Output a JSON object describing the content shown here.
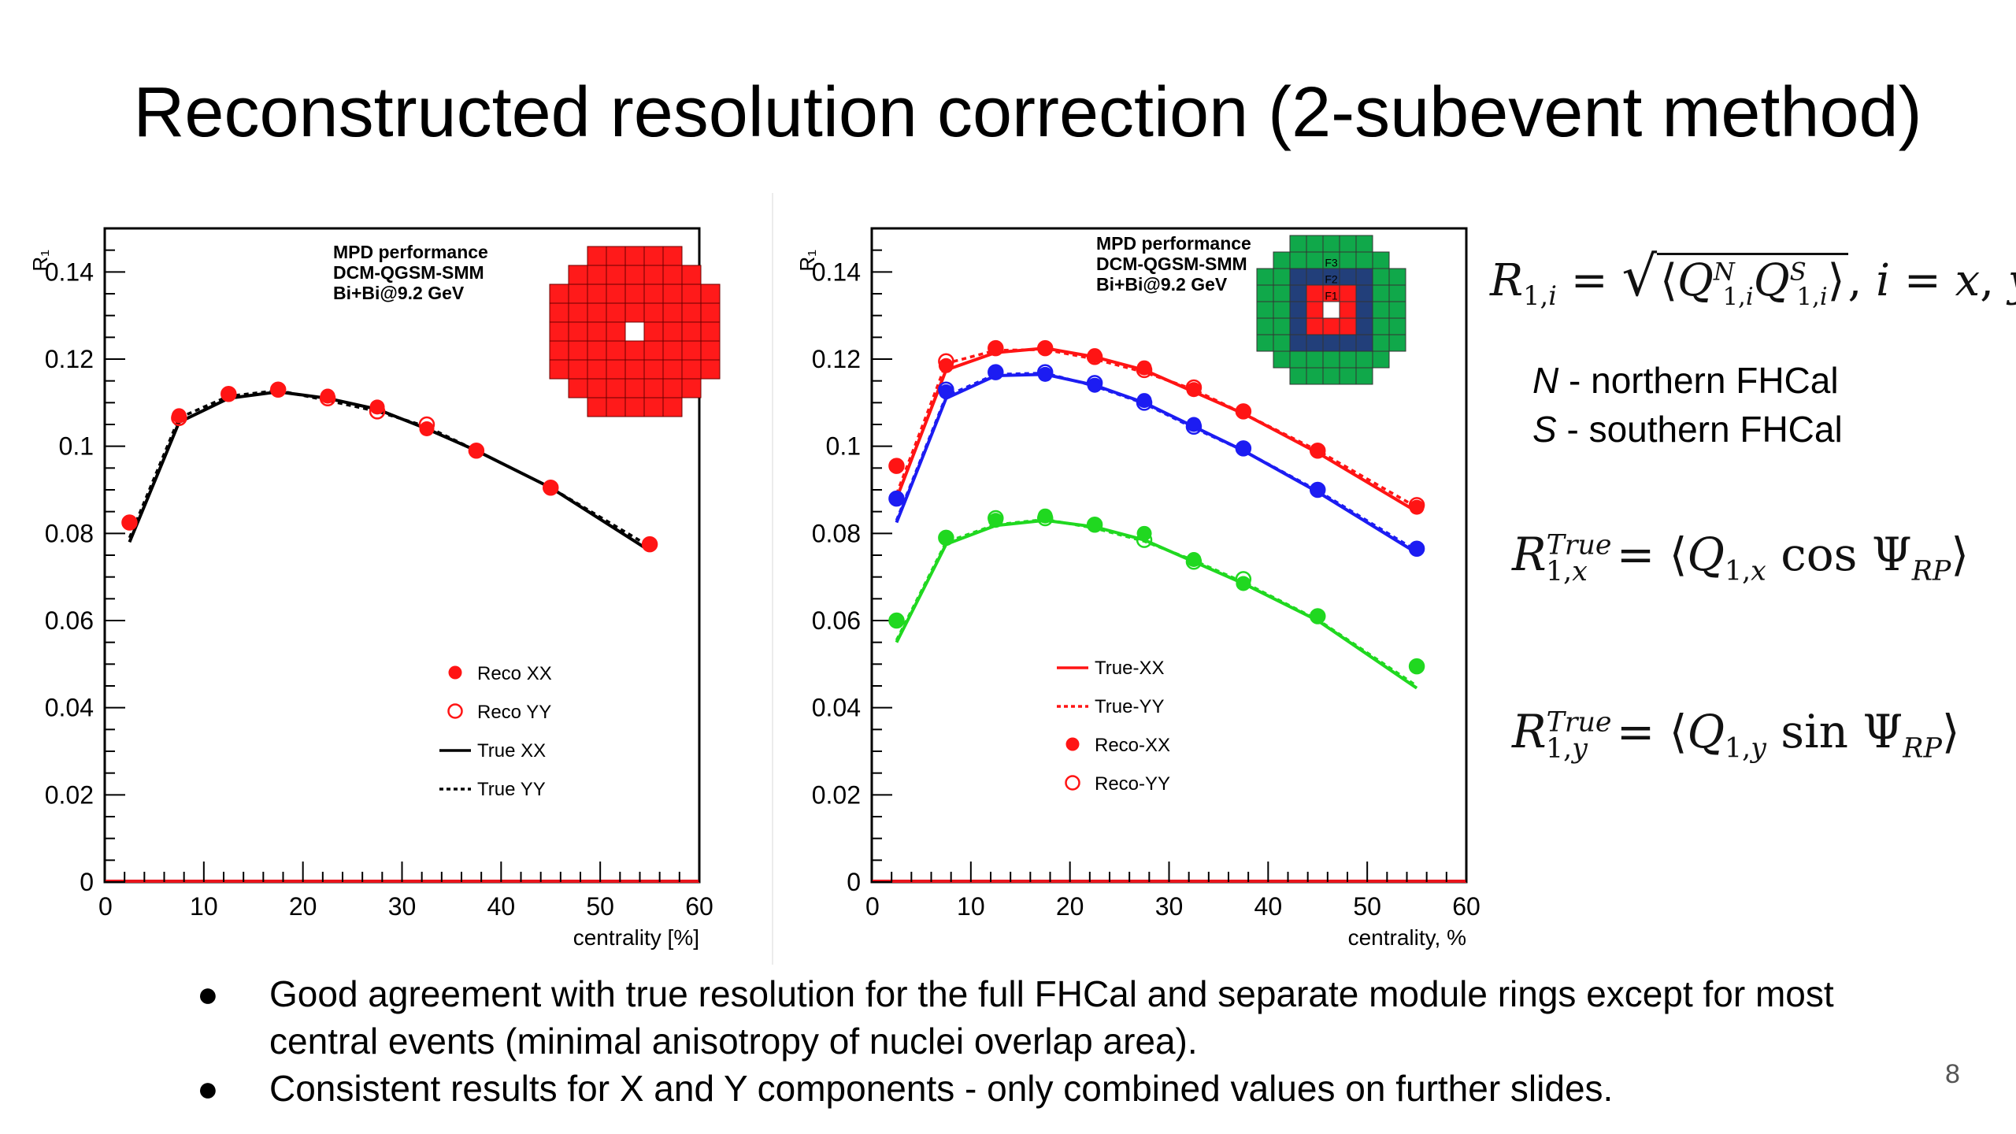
{
  "slide": {
    "title": "Reconstructed resolution correction (2-subevent method)",
    "page_number": "8",
    "bullets": [
      "Good agreement with true resolution for the full FHCal and separate module rings except for most central events (minimal anisotropy of nuclei overlap area).",
      "Consistent results for X and Y components - only combined values on further slides."
    ],
    "notes": [
      {
        "symbol": "N",
        "text": " - northern FHCal"
      },
      {
        "symbol": "S",
        "text": " - southern FHCal"
      }
    ],
    "colors": {
      "red": "#ff1414",
      "blue": "#1c1cf2",
      "green": "#20d820",
      "module_red": "#ff1a1a",
      "ring_blue": "#223f7a",
      "ring_green": "#10a84a"
    }
  },
  "chart_data": [
    {
      "type": "scatter",
      "title": "",
      "annotation": [
        "MPD performance",
        "DCM-QGSM-SMM",
        "Bi+Bi@9.2 GeV"
      ],
      "xlabel": "centrality [%]",
      "ylabel": "R₁",
      "xlim": [
        0,
        60
      ],
      "ylim": [
        0,
        0.15
      ],
      "xticks": [
        0,
        10,
        20,
        30,
        40,
        50,
        60
      ],
      "yticks": [
        0,
        0.02,
        0.04,
        0.06,
        0.08,
        0.1,
        0.12,
        0.14
      ],
      "ytick_labels": [
        "0",
        "0.02",
        "0.04",
        "0.06",
        "0.08",
        "0.1",
        "0.12",
        "0.14"
      ],
      "legend_position": "bottom-right",
      "x": [
        2.5,
        7.5,
        12.5,
        17.5,
        22.5,
        27.5,
        32.5,
        37.5,
        45,
        55
      ],
      "series": [
        {
          "name": "Reco XX",
          "style": "marker-filled",
          "color": "#ff1414",
          "values": [
            0.0825,
            0.107,
            0.112,
            0.113,
            0.1115,
            0.109,
            0.104,
            0.099,
            0.0905,
            0.0775
          ]
        },
        {
          "name": "Reco YY",
          "style": "marker-open",
          "color": "#ff1414",
          "values": [
            0.0825,
            0.1065,
            0.112,
            0.113,
            0.111,
            0.108,
            0.105,
            0.099,
            0.0905,
            0.0775
          ]
        },
        {
          "name": "True XX",
          "style": "line-solid",
          "color": "#000000",
          "values": [
            0.078,
            0.1055,
            0.111,
            0.1125,
            0.111,
            0.1085,
            0.104,
            0.099,
            0.0905,
            0.076
          ]
        },
        {
          "name": "True YY",
          "style": "line-dotted",
          "color": "#000000",
          "values": [
            0.079,
            0.1065,
            0.1115,
            0.1128,
            0.1105,
            0.108,
            0.1045,
            0.099,
            0.0905,
            0.077
          ]
        }
      ]
    },
    {
      "type": "scatter",
      "title": "",
      "annotation": [
        "MPD performance",
        "DCM-QGSM-SMM",
        "Bi+Bi@9.2 GeV"
      ],
      "xlabel": "centrality, %",
      "ylabel": "R₁",
      "xlim": [
        0,
        60
      ],
      "ylim": [
        0,
        0.15
      ],
      "xticks": [
        0,
        10,
        20,
        30,
        40,
        50,
        60
      ],
      "yticks": [
        0,
        0.02,
        0.04,
        0.06,
        0.08,
        0.1,
        0.12,
        0.14
      ],
      "ytick_labels": [
        "0",
        "0.02",
        "0.04",
        "0.06",
        "0.08",
        "0.1",
        "0.12",
        "0.14"
      ],
      "legend_position": "bottom-right",
      "module_labels": [
        "F3",
        "F2",
        "F1"
      ],
      "x": [
        2.5,
        7.5,
        12.5,
        17.5,
        22.5,
        27.5,
        32.5,
        37.5,
        45,
        55
      ],
      "groups": [
        {
          "color": "#ff1414",
          "reco_xx": [
            0.0955,
            0.1185,
            0.1225,
            0.1225,
            0.1208,
            0.118,
            0.113,
            0.108,
            0.099,
            0.086
          ],
          "reco_yy": [
            0.0955,
            0.1195,
            0.1225,
            0.1225,
            0.1205,
            0.1175,
            0.1135,
            0.108,
            0.099,
            0.0865
          ],
          "true_xx": [
            0.088,
            0.1175,
            0.1215,
            0.1225,
            0.1205,
            0.1175,
            0.1125,
            0.1075,
            0.0985,
            0.085
          ],
          "true_yy": [
            0.089,
            0.119,
            0.122,
            0.1222,
            0.12,
            0.117,
            0.113,
            0.1075,
            0.099,
            0.086
          ]
        },
        {
          "color": "#1c1cf2",
          "reco_xx": [
            0.088,
            0.1125,
            0.117,
            0.1165,
            0.114,
            0.1105,
            0.105,
            0.0995,
            0.09,
            0.0765
          ],
          "reco_yy": [
            0.088,
            0.113,
            0.117,
            0.117,
            0.1145,
            0.11,
            0.1045,
            0.0995,
            0.09,
            0.0765
          ],
          "true_xx": [
            0.0825,
            0.111,
            0.1162,
            0.1165,
            0.114,
            0.11,
            0.1045,
            0.099,
            0.0895,
            0.0755
          ],
          "true_yy": [
            0.083,
            0.1115,
            0.1165,
            0.1168,
            0.1138,
            0.1098,
            0.1042,
            0.099,
            0.0898,
            0.076
          ]
        },
        {
          "color": "#20d820",
          "reco_xx": [
            0.06,
            0.079,
            0.083,
            0.084,
            0.082,
            0.08,
            0.074,
            0.0685,
            0.061,
            0.0495
          ],
          "reco_yy": [
            0.06,
            0.079,
            0.0835,
            0.0835,
            0.082,
            0.0785,
            0.0735,
            0.0695,
            0.061,
            0.0495
          ],
          "true_xx": [
            0.055,
            0.0775,
            0.0818,
            0.083,
            0.0815,
            0.0785,
            0.0735,
            0.0685,
            0.06,
            0.0445
          ],
          "true_yy": [
            0.0555,
            0.078,
            0.082,
            0.0832,
            0.0812,
            0.0782,
            0.0738,
            0.0688,
            0.0602,
            0.045
          ]
        }
      ],
      "legend": [
        {
          "name": "True-XX",
          "style": "line-solid",
          "color": "#ff1414"
        },
        {
          "name": "True-YY",
          "style": "line-dotted",
          "color": "#ff1414"
        },
        {
          "name": "Reco-XX",
          "style": "marker-filled",
          "color": "#ff1414"
        },
        {
          "name": "Reco-YY",
          "style": "marker-open",
          "color": "#ff1414"
        }
      ]
    }
  ]
}
